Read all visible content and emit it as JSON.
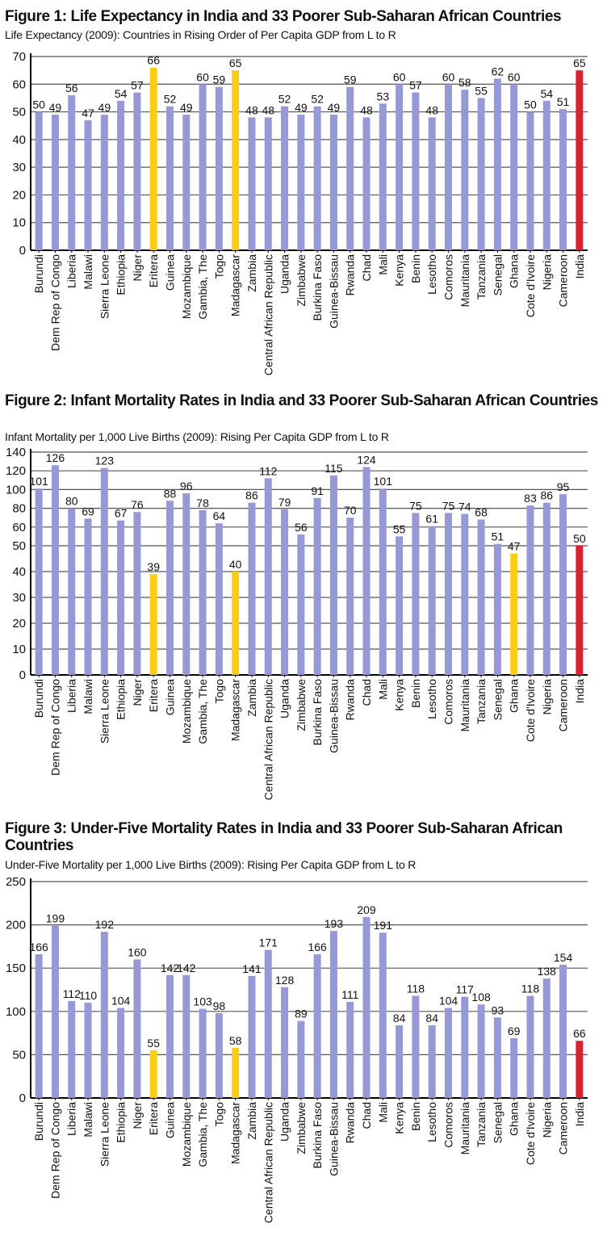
{
  "countries": [
    "Burundi",
    "Dem Rep of Congo",
    "Liberia",
    "Malawi",
    "Sierra Leone",
    "Ethiopia",
    "Niger",
    "Eritera",
    "Guinea",
    "Mozambique",
    "Gambia, The",
    "Togo",
    "Madagascar",
    "Zambia",
    "Central African Republic",
    "Uganda",
    "Zimbabwe",
    "Burkina Faso",
    "Guinea-Bissau",
    "Rwanda",
    "Chad",
    "Mali",
    "Kenya",
    "Benin",
    "Lesotho",
    "Comoros",
    "Mauritania",
    "Tanzania",
    "Senegal",
    "Ghana",
    "Cote d'Ivoire",
    "Nigeria",
    "Cameroon",
    "India"
  ],
  "colors": {
    "default": "#9799d6",
    "highlight": "#f8cc17",
    "india": "#e0202e",
    "grid": "#555555",
    "axis": "#000000"
  },
  "chart_data": [
    {
      "type": "bar",
      "title": "Figure 1: Life Expectancy in India and 33 Poorer Sub-Saharan African Countries",
      "subtitle": "Life Expectancy (2009): Countries in Rising Order of Per Capita GDP from L to R",
      "categories": [
        "Burundi",
        "Dem Rep of Congo",
        "Liberia",
        "Malawi",
        "Sierra Leone",
        "Ethiopia",
        "Niger",
        "Eritera",
        "Guinea",
        "Mozambique",
        "Gambia, The",
        "Togo",
        "Madagascar",
        "Zambia",
        "Central African Republic",
        "Uganda",
        "Zimbabwe",
        "Burkina Faso",
        "Guinea-Bissau",
        "Rwanda",
        "Chad",
        "Mali",
        "Kenya",
        "Benin",
        "Lesotho",
        "Comoros",
        "Mauritania",
        "Tanzania",
        "Senegal",
        "Ghana",
        "Cote d'Ivoire",
        "Nigeria",
        "Cameroon",
        "India"
      ],
      "values": [
        50,
        49,
        56,
        47,
        49,
        54,
        57,
        66,
        52,
        49,
        60,
        59,
        65,
        48,
        48,
        52,
        49,
        52,
        49,
        59,
        48,
        53,
        60,
        57,
        48,
        60,
        58,
        55,
        62,
        60,
        50,
        54,
        51,
        65
      ],
      "highlight_yellow": [
        "Eritera",
        "Madagascar"
      ],
      "highlight_red": [
        "India"
      ],
      "yticks": [
        0,
        10,
        20,
        30,
        40,
        50,
        60,
        70
      ],
      "ylim": [
        0,
        70
      ],
      "grid": true
    },
    {
      "type": "bar",
      "title": "Figure 2: Infant Mortality Rates in India and 33 Poorer Sub-Saharan African Countries",
      "subtitle": "Infant Mortality per 1,000 Live Births (2009): Rising Per Capita GDP from L to R",
      "categories": [
        "Burundi",
        "Dem Rep of Congo",
        "Liberia",
        "Malawi",
        "Sierra Leone",
        "Ethiopia",
        "Niger",
        "Eritera",
        "Guinea",
        "Mozambique",
        "Gambia, The",
        "Togo",
        "Madagascar",
        "Zambia",
        "Central African Republic",
        "Uganda",
        "Zimbabwe",
        "Burkina Faso",
        "Guinea-Bissau",
        "Rwanda",
        "Chad",
        "Mali",
        "Kenya",
        "Benin",
        "Lesotho",
        "Comoros",
        "Mauritania",
        "Tanzania",
        "Senegal",
        "Ghana",
        "Cote d'Ivoire",
        "Nigeria",
        "Cameroon",
        "India"
      ],
      "values": [
        101,
        126,
        80,
        69,
        123,
        67,
        76,
        39,
        88,
        96,
        78,
        64,
        40,
        86,
        112,
        79,
        56,
        91,
        115,
        70,
        124,
        101,
        55,
        75,
        61,
        75,
        74,
        68,
        51,
        47,
        83,
        86,
        95,
        50
      ],
      "highlight_yellow": [
        "Eritera",
        "Madagascar",
        "Ghana"
      ],
      "highlight_red": [
        "India"
      ],
      "yticks": [
        0,
        10,
        20,
        30,
        40,
        50,
        60,
        80,
        100,
        120,
        140
      ],
      "ylim": [
        0,
        140
      ],
      "grid": true
    },
    {
      "type": "bar",
      "title": "Figure 3: Under-Five Mortality Rates in India and 33 Poorer Sub-Saharan African Countries",
      "subtitle": "Under-Five Mortality per 1,000 Live Births (2009): Rising Per Capita GDP from L to R",
      "categories": [
        "Burundi",
        "Dem Rep of Congo",
        "Liberia",
        "Malawi",
        "Sierra Leone",
        "Ethiopia",
        "Niger",
        "Eritera",
        "Guinea",
        "Mozambique",
        "Gambia, The",
        "Togo",
        "Madagascar",
        "Zambia",
        "Central African Republic",
        "Uganda",
        "Zimbabwe",
        "Burkina Faso",
        "Guinea-Bissau",
        "Rwanda",
        "Chad",
        "Mali",
        "Kenya",
        "Benin",
        "Lesotho",
        "Comoros",
        "Mauritania",
        "Tanzania",
        "Senegal",
        "Ghana",
        "Cote d'Ivoire",
        "Nigeria",
        "Cameroon",
        "India"
      ],
      "values": [
        166,
        199,
        112,
        110,
        192,
        104,
        160,
        55,
        142,
        142,
        103,
        98,
        58,
        141,
        171,
        128,
        89,
        166,
        193,
        111,
        209,
        191,
        84,
        118,
        84,
        104,
        117,
        108,
        93,
        69,
        118,
        138,
        154,
        66
      ],
      "highlight_yellow": [
        "Eritera",
        "Madagascar"
      ],
      "highlight_red": [
        "India"
      ],
      "yticks": [
        0,
        50,
        100,
        150,
        200,
        250
      ],
      "ylim": [
        0,
        250
      ],
      "grid": true
    }
  ]
}
